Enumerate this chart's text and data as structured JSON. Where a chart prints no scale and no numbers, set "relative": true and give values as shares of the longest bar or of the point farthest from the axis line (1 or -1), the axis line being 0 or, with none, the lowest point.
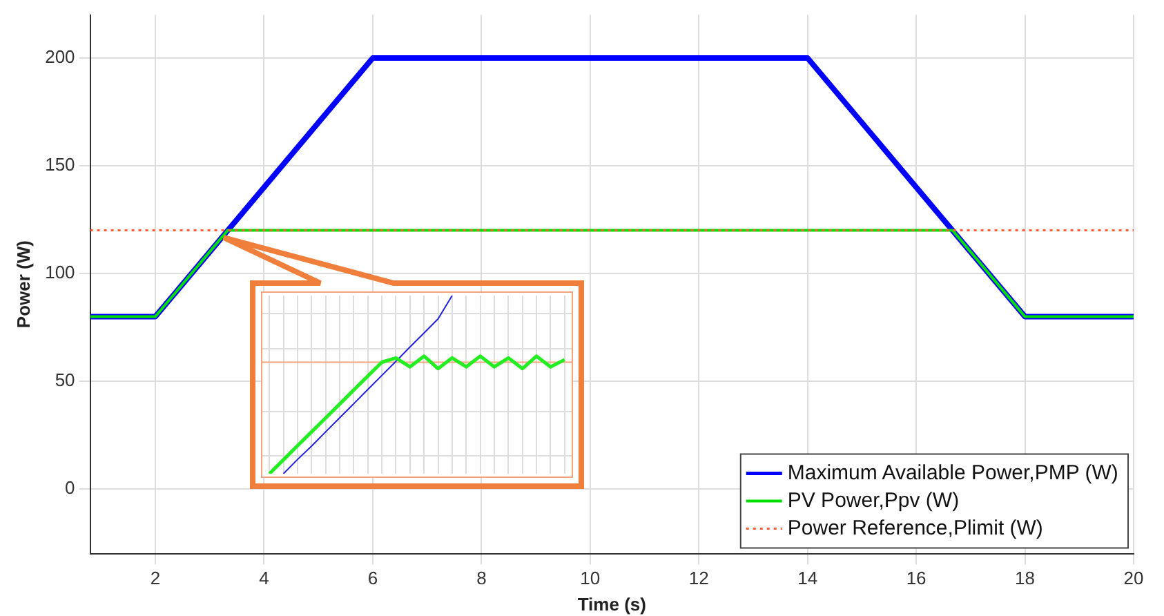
{
  "chart_data": [
    {
      "type": "line",
      "xlabel": "Time (s)",
      "ylabel": "Power (W)",
      "xlim": [
        0.8,
        20
      ],
      "xticks": [
        2,
        4,
        6,
        8,
        10,
        12,
        14,
        16,
        18,
        20
      ],
      "ylim": [
        -30,
        220
      ],
      "yticks": [
        0,
        50,
        100,
        150,
        200
      ],
      "grid": true,
      "legend": "bottom right",
      "marker": "none",
      "series": [
        {
          "name": "Maximum Available Power,PMP (W)",
          "color": "#0000ff",
          "line_style": "solid",
          "x": [
            0.8,
            2,
            6,
            14,
            18,
            20
          ],
          "values": [
            80,
            80,
            200,
            200,
            80,
            80
          ]
        },
        {
          "name": "PV Power,Ppv (W)",
          "color": "#00e000",
          "line_style": "solid",
          "x": [
            0.8,
            2,
            3.33,
            16.67,
            18,
            20
          ],
          "values": [
            80,
            80,
            120,
            120,
            80,
            80
          ]
        },
        {
          "name": "Power Reference,Plimit (W)",
          "color": "#ff5a36",
          "line_style": "dotted",
          "x": [
            0.8,
            20
          ],
          "values": [
            120,
            120
          ]
        }
      ]
    },
    {
      "type": "line",
      "relative": true,
      "grid": true,
      "marker": "none",
      "categories": [
        null,
        null,
        null,
        null,
        null,
        null,
        null,
        null,
        null,
        null,
        null,
        null,
        null,
        null,
        null,
        null,
        null,
        null,
        null,
        null,
        null,
        null
      ],
      "ref_lines": [
        {
          "axis": "y",
          "value": 0.626,
          "color": "#f4a37a"
        }
      ],
      "series": [
        {
          "color": "#2222dd",
          "values": [
            null,
            0,
            0.08,
            0.155,
            0.235,
            0.314,
            0.393,
            0.473,
            0.552,
            0.631,
            0.711,
            0.79,
            0.869,
            1,
            null,
            null,
            null,
            null,
            null,
            null,
            null,
            null
          ]
        },
        {
          "color": "#22ee22",
          "values": [
            0,
            0.078,
            0.157,
            0.235,
            0.313,
            0.391,
            0.47,
            0.548,
            0.626,
            0.65,
            0.6,
            0.66,
            0.59,
            0.65,
            0.6,
            0.66,
            0.6,
            0.65,
            0.59,
            0.66,
            0.6,
            0.64
          ]
        }
      ]
    }
  ]
}
